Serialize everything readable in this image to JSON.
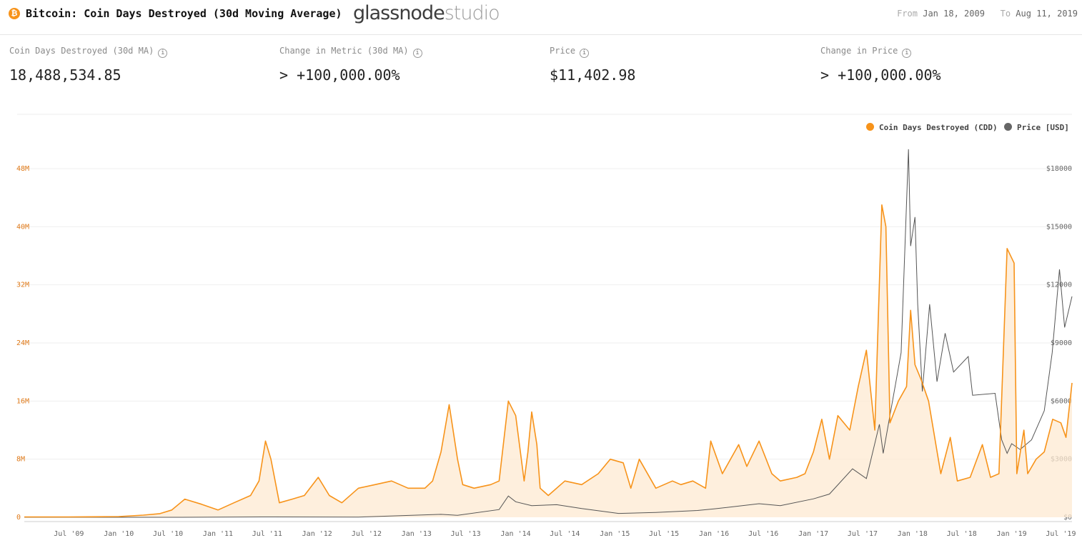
{
  "header": {
    "title": "Bitcoin: Coin Days Destroyed (30d Moving Average)",
    "coin_icon": "bitcoin-icon",
    "coin_symbol": "₿",
    "brand_main": "glassnode",
    "brand_sub": "studio",
    "from_label": "From",
    "from_date": "Jan 18, 2009",
    "to_label": "To",
    "to_date": "Aug 11, 2019"
  },
  "stats": [
    {
      "label": "Coin Days Destroyed (30d MA)",
      "value": "18,488,534.85"
    },
    {
      "label": "Change in Metric (30d MA)",
      "value": "> +100,000.00%"
    },
    {
      "label": "Price",
      "value": "$11,402.98"
    },
    {
      "label": "Change in Price",
      "value": "> +100,000.00%"
    }
  ],
  "colors": {
    "cdd": "#f7931a",
    "price": "#555555",
    "cdd_axis": "#e07b1b",
    "fill": "#fde9d2"
  },
  "chart_data": {
    "type": "line",
    "x_ticks": [
      "Jul '09",
      "Jan '10",
      "Jul '10",
      "Jan '11",
      "Jul '11",
      "Jan '12",
      "Jul '12",
      "Jan '13",
      "Jul '13",
      "Jan '14",
      "Jul '14",
      "Jan '15",
      "Jul '15",
      "Jan '16",
      "Jul '16",
      "Jan '17",
      "Jul '17",
      "Jan '18",
      "Jul '18",
      "Jan '19",
      "Jul '19"
    ],
    "left_ticks": [
      "0",
      "8M",
      "16M",
      "24M",
      "32M",
      "40M",
      "48M"
    ],
    "right_ticks": [
      "$0",
      "$3000",
      "$6000",
      "$9000",
      "$12000",
      "$15000",
      "$18000"
    ],
    "left_range": [
      0,
      48000000
    ],
    "right_range": [
      0,
      18000
    ],
    "x_range": [
      "2009-01-18",
      "2019-08-11"
    ],
    "legend_position": "top-right",
    "series": [
      {
        "name": "Coin Days Destroyed (CDD)",
        "axis": "left",
        "points": [
          [
            "2009-01-18",
            0.05
          ],
          [
            "2009-07-01",
            0.05
          ],
          [
            "2010-01-01",
            0.1
          ],
          [
            "2010-04-01",
            0.3
          ],
          [
            "2010-06-01",
            0.5
          ],
          [
            "2010-07-15",
            1.0
          ],
          [
            "2010-09-01",
            2.5
          ],
          [
            "2010-11-01",
            1.8
          ],
          [
            "2011-01-01",
            1.0
          ],
          [
            "2011-03-01",
            2.0
          ],
          [
            "2011-05-01",
            3.0
          ],
          [
            "2011-06-01",
            5.0
          ],
          [
            "2011-06-25",
            10.5
          ],
          [
            "2011-07-15",
            8.0
          ],
          [
            "2011-08-15",
            2.0
          ],
          [
            "2011-10-01",
            2.5
          ],
          [
            "2011-11-15",
            3.0
          ],
          [
            "2012-01-05",
            5.5
          ],
          [
            "2012-02-15",
            3.0
          ],
          [
            "2012-04-01",
            2.0
          ],
          [
            "2012-06-01",
            4.0
          ],
          [
            "2012-08-01",
            4.5
          ],
          [
            "2012-10-01",
            5.0
          ],
          [
            "2012-12-01",
            4.0
          ],
          [
            "2013-02-01",
            4.0
          ],
          [
            "2013-03-01",
            5.0
          ],
          [
            "2013-04-01",
            9.0
          ],
          [
            "2013-05-01",
            15.5
          ],
          [
            "2013-06-01",
            8.0
          ],
          [
            "2013-06-20",
            4.5
          ],
          [
            "2013-08-01",
            4.0
          ],
          [
            "2013-10-01",
            4.5
          ],
          [
            "2013-11-01",
            5.0
          ],
          [
            "2013-12-05",
            16.0
          ],
          [
            "2014-01-01",
            14.0
          ],
          [
            "2014-02-01",
            5.0
          ],
          [
            "2014-02-15",
            9.0
          ],
          [
            "2014-03-01",
            14.5
          ],
          [
            "2014-03-20",
            10.0
          ],
          [
            "2014-04-01",
            4.0
          ],
          [
            "2014-05-01",
            3.0
          ],
          [
            "2014-07-01",
            5.0
          ],
          [
            "2014-09-01",
            4.5
          ],
          [
            "2014-11-01",
            6.0
          ],
          [
            "2014-12-15",
            8.0
          ],
          [
            "2015-02-01",
            7.5
          ],
          [
            "2015-03-01",
            4.0
          ],
          [
            "2015-04-01",
            8.0
          ],
          [
            "2015-06-01",
            4.0
          ],
          [
            "2015-08-01",
            5.0
          ],
          [
            "2015-09-01",
            4.5
          ],
          [
            "2015-10-15",
            5.0
          ],
          [
            "2015-12-01",
            4.0
          ],
          [
            "2015-12-20",
            10.5
          ],
          [
            "2016-02-01",
            6.0
          ],
          [
            "2016-04-01",
            10.0
          ],
          [
            "2016-05-01",
            7.0
          ],
          [
            "2016-06-15",
            10.5
          ],
          [
            "2016-08-01",
            6.0
          ],
          [
            "2016-09-01",
            5.0
          ],
          [
            "2016-11-01",
            5.5
          ],
          [
            "2016-12-01",
            6.0
          ],
          [
            "2017-01-01",
            9.0
          ],
          [
            "2017-02-01",
            13.5
          ],
          [
            "2017-03-01",
            8.0
          ],
          [
            "2017-04-01",
            14.0
          ],
          [
            "2017-05-15",
            12.0
          ],
          [
            "2017-06-15",
            18.0
          ],
          [
            "2017-07-15",
            23.0
          ],
          [
            "2017-08-15",
            12.0
          ],
          [
            "2017-09-10",
            43.0
          ],
          [
            "2017-09-25",
            40.0
          ],
          [
            "2017-10-10",
            13.0
          ],
          [
            "2017-11-10",
            16.0
          ],
          [
            "2017-12-10",
            18.0
          ],
          [
            "2017-12-25",
            28.5
          ],
          [
            "2018-01-10",
            21.0
          ],
          [
            "2018-02-01",
            19.0
          ],
          [
            "2018-03-01",
            16.0
          ],
          [
            "2018-04-15",
            6.0
          ],
          [
            "2018-05-20",
            11.0
          ],
          [
            "2018-06-15",
            5.0
          ],
          [
            "2018-08-01",
            5.5
          ],
          [
            "2018-09-15",
            10.0
          ],
          [
            "2018-10-15",
            5.5
          ],
          [
            "2018-11-15",
            6.0
          ],
          [
            "2018-12-15",
            37.0
          ],
          [
            "2019-01-10",
            35.0
          ],
          [
            "2019-01-20",
            6.0
          ],
          [
            "2019-02-15",
            12.0
          ],
          [
            "2019-03-01",
            6.0
          ],
          [
            "2019-04-01",
            8.0
          ],
          [
            "2019-05-01",
            9.0
          ],
          [
            "2019-06-01",
            13.5
          ],
          [
            "2019-07-01",
            13.0
          ],
          [
            "2019-07-20",
            11.0
          ],
          [
            "2019-08-11",
            18.5
          ]
        ]
      },
      {
        "name": "Price [USD]",
        "axis": "right",
        "points": [
          [
            "2009-01-18",
            0
          ],
          [
            "2010-07-15",
            0.1
          ],
          [
            "2011-06-15",
            20
          ],
          [
            "2012-06-01",
            10
          ],
          [
            "2013-04-01",
            150
          ],
          [
            "2013-06-01",
            100
          ],
          [
            "2013-11-01",
            400
          ],
          [
            "2013-12-05",
            1100
          ],
          [
            "2014-01-01",
            800
          ],
          [
            "2014-03-01",
            600
          ],
          [
            "2014-06-01",
            650
          ],
          [
            "2014-09-01",
            450
          ],
          [
            "2015-01-15",
            200
          ],
          [
            "2015-06-01",
            250
          ],
          [
            "2015-11-01",
            350
          ],
          [
            "2016-01-01",
            430
          ],
          [
            "2016-06-15",
            700
          ],
          [
            "2016-09-01",
            600
          ],
          [
            "2017-01-01",
            950
          ],
          [
            "2017-03-01",
            1200
          ],
          [
            "2017-05-25",
            2500
          ],
          [
            "2017-07-15",
            2000
          ],
          [
            "2017-09-01",
            4800
          ],
          [
            "2017-09-15",
            3300
          ],
          [
            "2017-11-01",
            7000
          ],
          [
            "2017-11-20",
            8500
          ],
          [
            "2017-12-17",
            19000
          ],
          [
            "2017-12-25",
            14000
          ],
          [
            "2018-01-10",
            15500
          ],
          [
            "2018-01-20",
            11000
          ],
          [
            "2018-02-06",
            6500
          ],
          [
            "2018-03-05",
            11000
          ],
          [
            "2018-04-01",
            7000
          ],
          [
            "2018-05-01",
            9500
          ],
          [
            "2018-06-01",
            7500
          ],
          [
            "2018-07-25",
            8300
          ],
          [
            "2018-08-10",
            6300
          ],
          [
            "2018-11-01",
            6400
          ],
          [
            "2018-11-25",
            4000
          ],
          [
            "2018-12-15",
            3300
          ],
          [
            "2019-01-01",
            3800
          ],
          [
            "2019-02-01",
            3500
          ],
          [
            "2019-03-15",
            4000
          ],
          [
            "2019-05-01",
            5500
          ],
          [
            "2019-05-30",
            8500
          ],
          [
            "2019-06-26",
            12800
          ],
          [
            "2019-07-15",
            9800
          ],
          [
            "2019-08-11",
            11400
          ]
        ]
      }
    ]
  }
}
